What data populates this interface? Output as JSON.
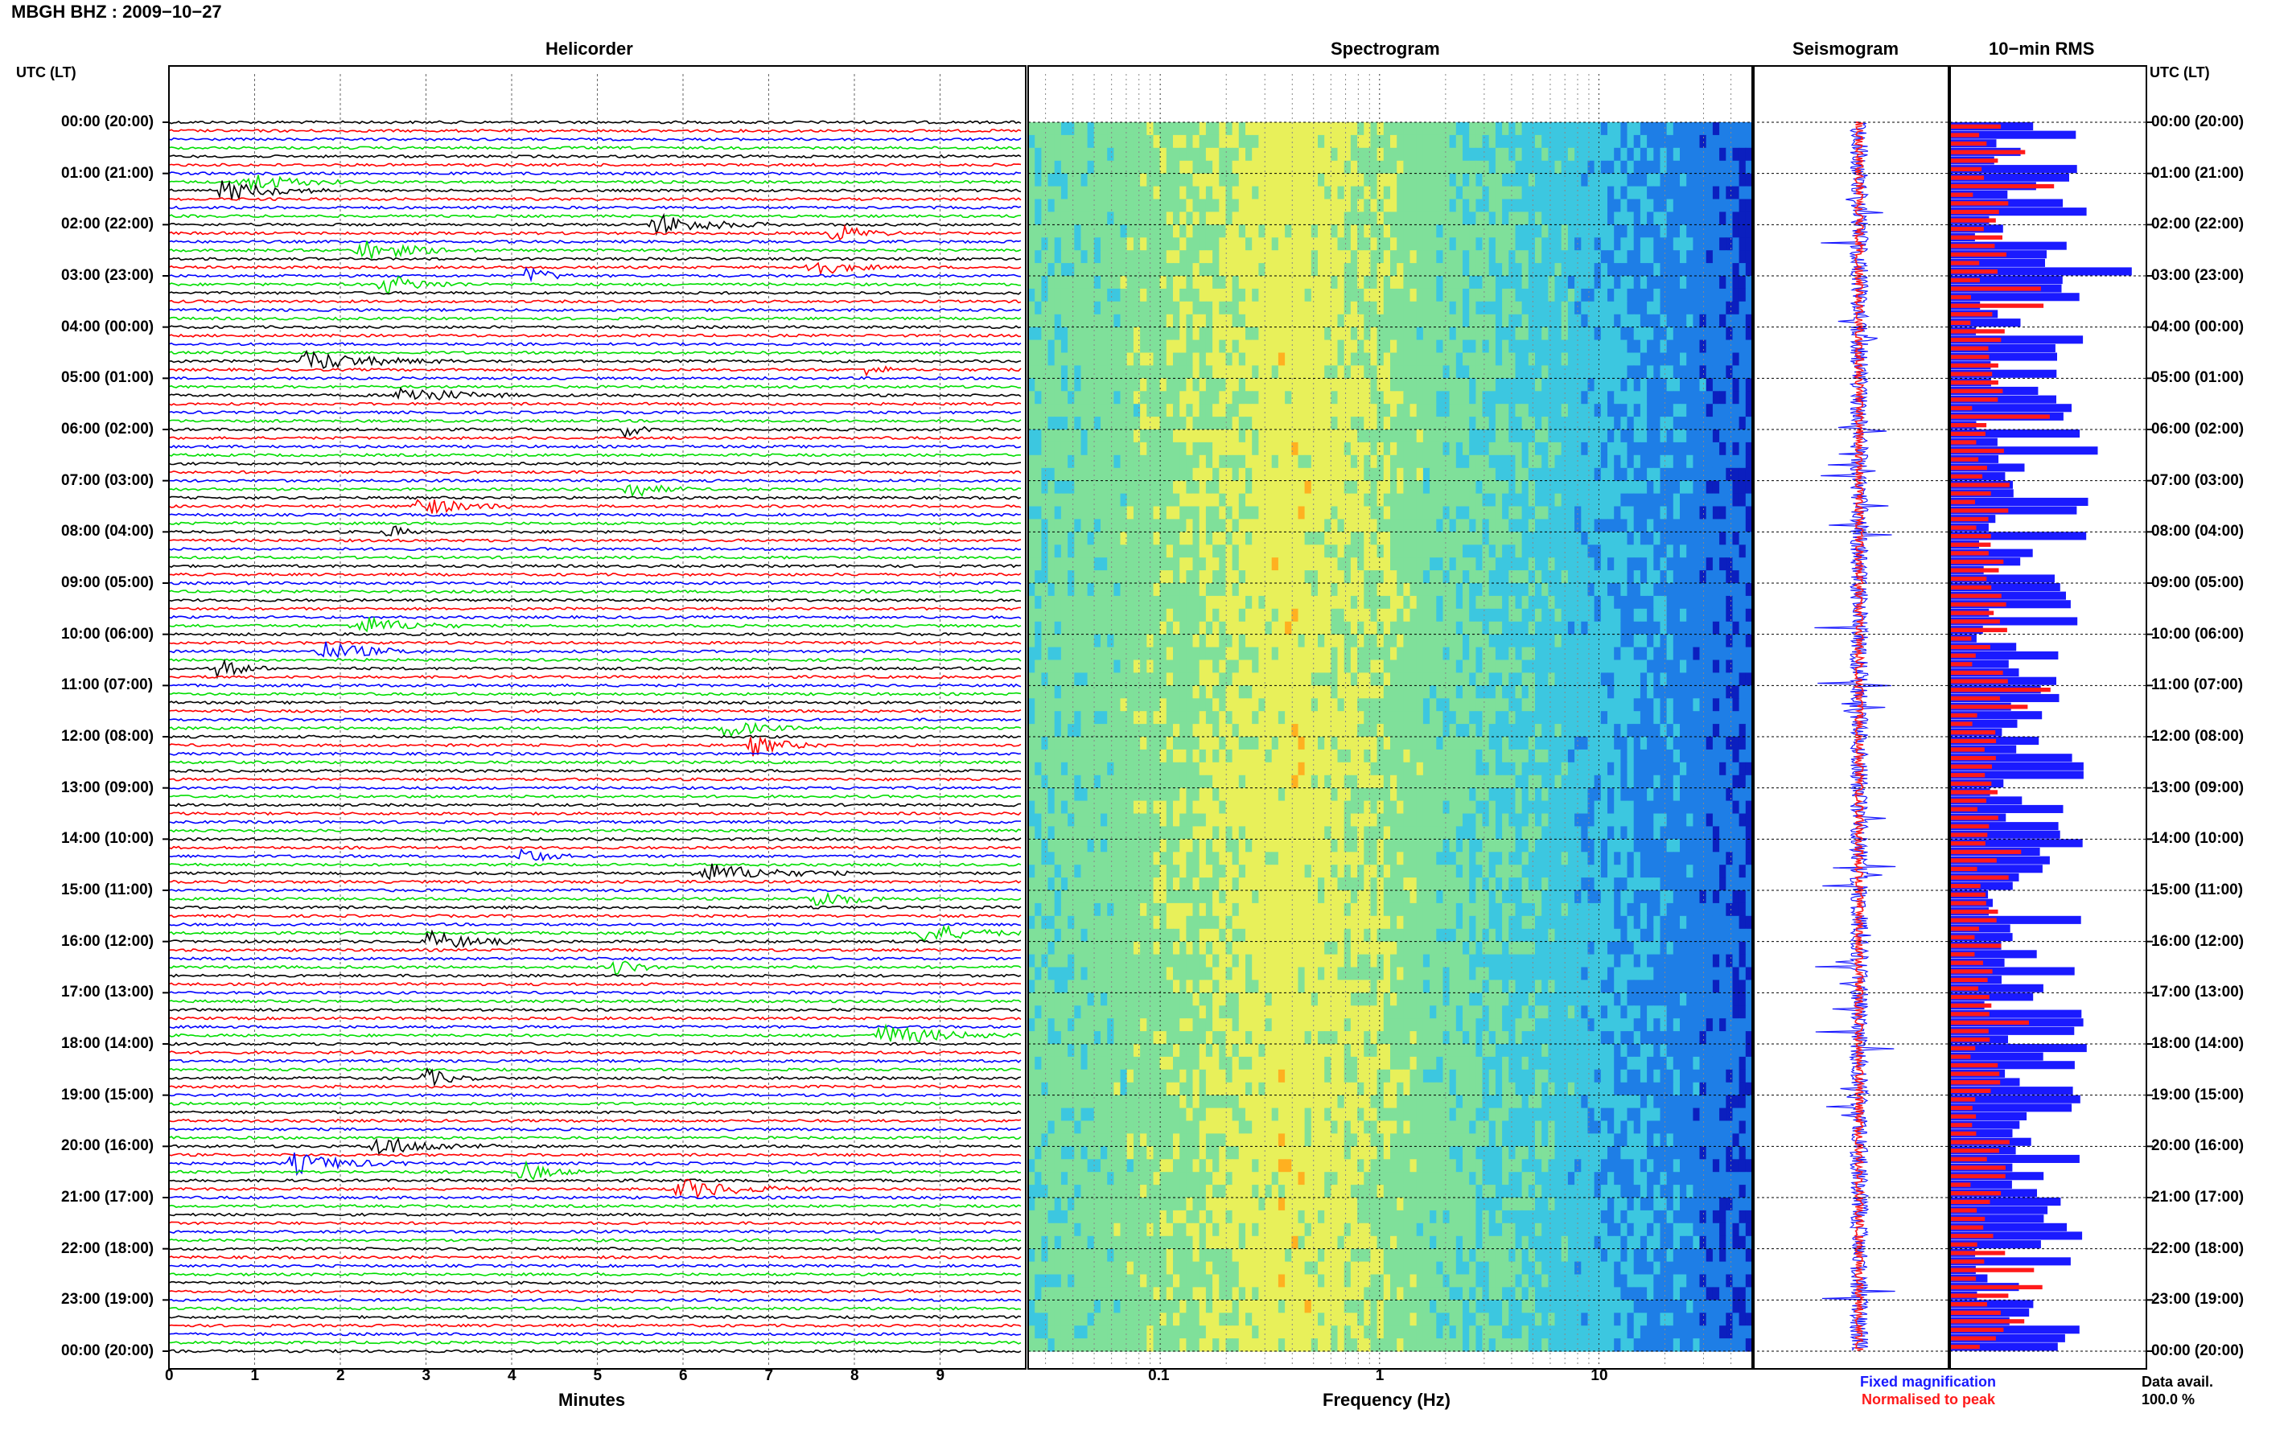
{
  "page": {
    "title": "MBGH BHZ : 2009−10−27",
    "utc_label": "UTC (LT)",
    "panel_titles": {
      "helicorder": "Helicorder",
      "spectrogram": "Spectrogram",
      "seismogram": "Seismogram",
      "rms": "10−min RMS"
    },
    "legend": {
      "fixed": "Fixed magnification",
      "normalised": "Normalised to peak",
      "fixed_color": "#1a1aff",
      "normalised_color": "#ff1a1a"
    },
    "data_avail_label": "Data avail.",
    "data_avail_value": "100.0 %"
  },
  "chart_data": [
    {
      "type": "line",
      "panel": "Helicorder",
      "xlabel": "Minutes",
      "xlim": [
        0,
        10
      ],
      "x_ticks": [
        "0",
        "1",
        "2",
        "3",
        "4",
        "5",
        "6",
        "7",
        "8",
        "9"
      ],
      "time_labels": [
        "00:00 (20:00)",
        "01:00 (21:00)",
        "02:00 (22:00)",
        "03:00 (23:00)",
        "04:00 (00:00)",
        "05:00 (01:00)",
        "06:00 (02:00)",
        "07:00 (03:00)",
        "08:00 (04:00)",
        "09:00 (05:00)",
        "10:00 (06:00)",
        "11:00 (07:00)",
        "12:00 (08:00)",
        "13:00 (09:00)",
        "14:00 (10:00)",
        "15:00 (11:00)",
        "16:00 (12:00)",
        "17:00 (13:00)",
        "18:00 (14:00)",
        "19:00 (15:00)",
        "20:00 (16:00)",
        "21:00 (17:00)",
        "22:00 (18:00)",
        "23:00 (19:00)",
        "00:00 (20:00)"
      ],
      "line_colors": [
        "#000000",
        "#ff0000",
        "#0000ff",
        "#00dd00"
      ],
      "lines_per_hour": 6
    },
    {
      "type": "heatmap",
      "panel": "Spectrogram",
      "xlabel": "Frequency (Hz)",
      "xscale": "log",
      "xlim": [
        0.025,
        50
      ],
      "x_ticks": [
        "0.1",
        "1",
        "10"
      ],
      "colormap": [
        "#0b1fbf",
        "#1e7ee6",
        "#3cc7e0",
        "#7fe09a",
        "#e8f05a",
        "#ffb020",
        "#ff3a10"
      ]
    },
    {
      "type": "line",
      "panel": "Seismogram",
      "series": [
        {
          "name": "Fixed magnification",
          "color": "#1a1aff"
        },
        {
          "name": "Normalised to peak",
          "color": "#ff1a1a"
        }
      ]
    },
    {
      "type": "bar",
      "panel": "10-min RMS",
      "orientation": "horizontal",
      "n_bars": 144,
      "series": [
        {
          "name": "Fixed magnification",
          "color": "#1a1aff"
        },
        {
          "name": "Normalised to peak",
          "color": "#ff1a1a"
        }
      ]
    }
  ]
}
